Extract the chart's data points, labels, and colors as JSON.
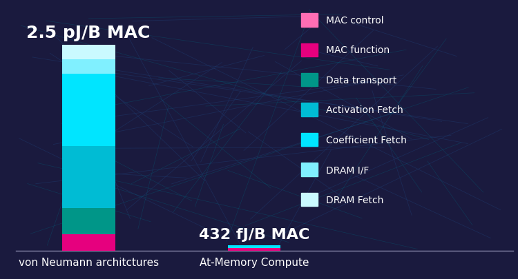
{
  "background_color": "#1a1a3e",
  "categories": [
    "von Neumann architctures",
    "At-Memory Compute"
  ],
  "bar1_label": "2.5 pJ/B MAC",
  "bar2_label": "432 fJ/B MAC",
  "segments_vn": [
    {
      "name": "MAC function",
      "color": "#e6007e",
      "value": 0.08
    },
    {
      "name": "Data transport",
      "color": "#009688",
      "value": 0.13
    },
    {
      "name": "Activation Fetch",
      "color": "#00bcd4",
      "value": 0.3
    },
    {
      "name": "Coefficient Fetch",
      "color": "#00e5ff",
      "value": 0.35
    },
    {
      "name": "DRAM I/F",
      "color": "#80f0ff",
      "value": 0.07
    },
    {
      "name": "DRAM Fetch",
      "color": "#cafaff",
      "value": 0.07
    }
  ],
  "segments_am": [
    {
      "name": "MAC function",
      "color": "#e6007e",
      "value": 0.09
    },
    {
      "name": "Coefficient Fetch",
      "color": "#00e5ff",
      "value": 0.08
    }
  ],
  "legend_items": [
    {
      "name": "MAC control",
      "color": "#ff6eb4"
    },
    {
      "name": "MAC function",
      "color": "#e6007e"
    },
    {
      "name": "Data transport",
      "color": "#009688"
    },
    {
      "name": "Activation Fetch",
      "color": "#00bcd4"
    },
    {
      "name": "Coefficient Fetch",
      "color": "#00e5ff"
    },
    {
      "name": "DRAM I/F",
      "color": "#80f0ff"
    },
    {
      "name": "DRAM Fetch",
      "color": "#cafaff"
    }
  ],
  "axis_line_color": "#8888aa",
  "text_color": "#ffffff",
  "bar1_label_fontsize": 18,
  "bar2_label_fontsize": 16,
  "tick_fontsize": 11,
  "legend_fontsize": 10,
  "vn_scale": 1.0,
  "am_scale": 0.172
}
